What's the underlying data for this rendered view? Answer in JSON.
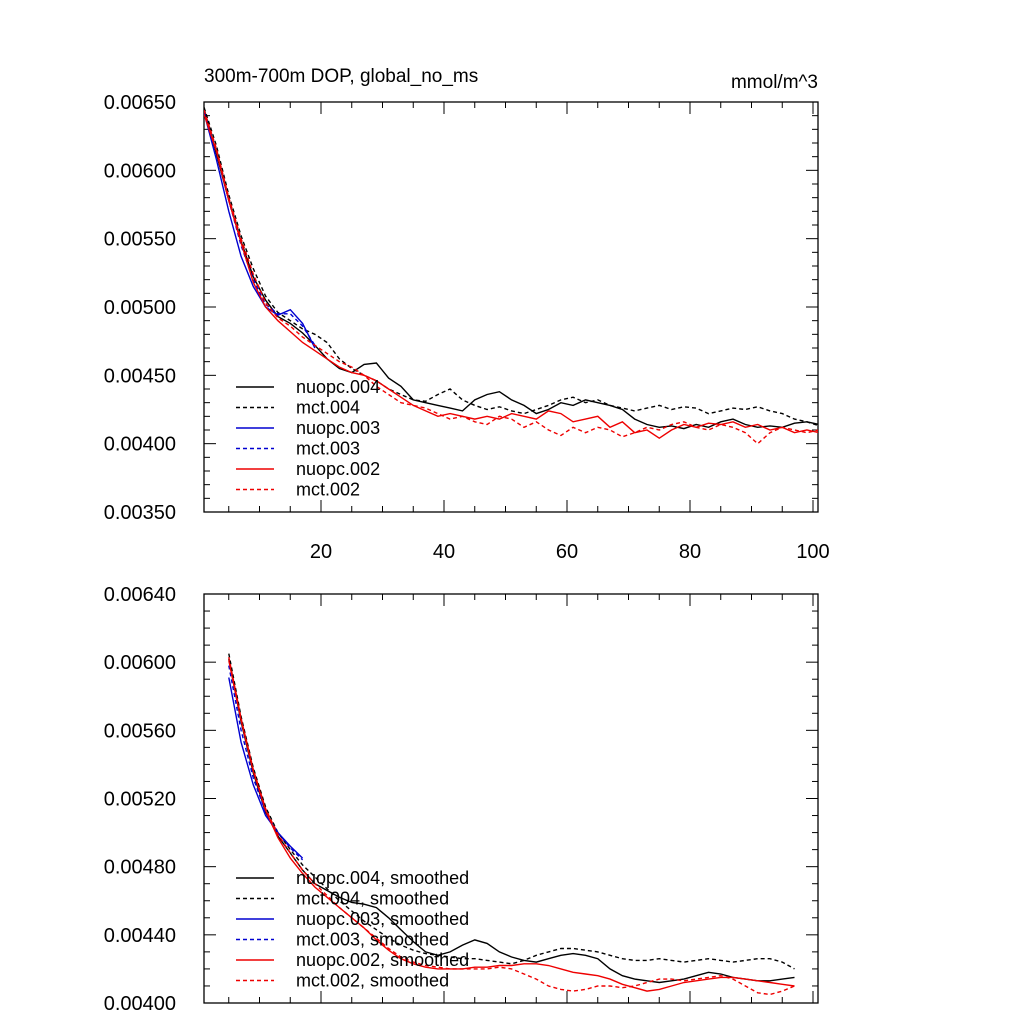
{
  "chart_data": [
    {
      "type": "line",
      "title": "300m-700m DOP, global_no_ms",
      "units": "mmol/m^3",
      "xlabel": "",
      "ylabel": "",
      "xlim": [
        1,
        101
      ],
      "ylim": [
        0.0035,
        0.0065
      ],
      "yticks": [
        "0.00350",
        "0.00400",
        "0.00450",
        "0.00500",
        "0.00550",
        "0.00600",
        "0.00650"
      ],
      "xticks": [
        "20",
        "40",
        "60",
        "80",
        "100"
      ],
      "grid": false,
      "legend_position": "bottom-left",
      "series": [
        {
          "name": "nuopc.004",
          "color": "#000000",
          "dash": "solid",
          "x": [
            1,
            3,
            5,
            7,
            9,
            11,
            13,
            15,
            17,
            19,
            21,
            23,
            25,
            27,
            29,
            31,
            33,
            35,
            37,
            39,
            41,
            43,
            45,
            47,
            49,
            51,
            53,
            55,
            57,
            59,
            61,
            63,
            65,
            67,
            69,
            71,
            73,
            75,
            77,
            79,
            81,
            83,
            85,
            87,
            89,
            91,
            93,
            95,
            97,
            99,
            101
          ],
          "y": [
            0.00645,
            0.00612,
            0.00578,
            0.00548,
            0.00522,
            0.00505,
            0.00493,
            0.00488,
            0.00481,
            0.00472,
            0.00462,
            0.00455,
            0.00452,
            0.00458,
            0.00459,
            0.00448,
            0.00442,
            0.00432,
            0.0043,
            0.00428,
            0.00426,
            0.00424,
            0.00432,
            0.00436,
            0.00438,
            0.00432,
            0.00428,
            0.00422,
            0.00425,
            0.0043,
            0.00428,
            0.00432,
            0.0043,
            0.00428,
            0.00425,
            0.00418,
            0.00414,
            0.00412,
            0.00413,
            0.00411,
            0.00414,
            0.00412,
            0.00416,
            0.00418,
            0.00414,
            0.00412,
            0.00413,
            0.00412,
            0.00415,
            0.00416,
            0.00414
          ]
        },
        {
          "name": "mct.004",
          "color": "#000000",
          "dash": "dashed",
          "x": [
            1,
            3,
            5,
            7,
            9,
            11,
            13,
            15,
            17,
            19,
            21,
            23,
            25,
            27,
            29,
            31,
            33,
            35,
            37,
            39,
            41,
            43,
            45,
            47,
            49,
            51,
            53,
            55,
            57,
            59,
            61,
            63,
            65,
            67,
            69,
            71,
            73,
            75,
            77,
            79,
            81,
            83,
            85,
            87,
            89,
            91,
            93,
            95,
            97,
            99,
            101
          ],
          "y": [
            0.00646,
            0.00618,
            0.00582,
            0.00552,
            0.00528,
            0.00508,
            0.00496,
            0.0049,
            0.00484,
            0.0048,
            0.00474,
            0.00462,
            0.00455,
            0.0045,
            0.00446,
            0.0044,
            0.00436,
            0.00432,
            0.00431,
            0.00436,
            0.0044,
            0.00432,
            0.00428,
            0.00425,
            0.00427,
            0.00424,
            0.00422,
            0.00425,
            0.00428,
            0.00432,
            0.00434,
            0.0043,
            0.00432,
            0.00428,
            0.00426,
            0.00424,
            0.00426,
            0.00428,
            0.00425,
            0.00427,
            0.00426,
            0.00422,
            0.00424,
            0.00426,
            0.00425,
            0.00427,
            0.00424,
            0.00422,
            0.00418,
            0.00416,
            0.00413
          ]
        },
        {
          "name": "nuopc.003",
          "color": "#0000d0",
          "dash": "solid",
          "x": [
            1,
            3,
            5,
            7,
            9,
            11,
            13,
            15,
            17,
            19
          ],
          "y": [
            0.00642,
            0.00608,
            0.0057,
            0.00537,
            0.00515,
            0.005,
            0.00494,
            0.00498,
            0.00488,
            0.0047
          ]
        },
        {
          "name": "mct.003",
          "color": "#0000d0",
          "dash": "dashed",
          "x": [
            1,
            3,
            5,
            7,
            9,
            11,
            13,
            15,
            17,
            19
          ],
          "y": [
            0.00643,
            0.00614,
            0.00578,
            0.00545,
            0.0052,
            0.00502,
            0.00495,
            0.00495,
            0.00486,
            0.00472
          ]
        },
        {
          "name": "nuopc.002",
          "color": "#ee0000",
          "dash": "solid",
          "x": [
            1,
            3,
            5,
            7,
            9,
            11,
            13,
            15,
            17,
            19,
            21,
            23,
            25,
            27,
            29,
            31,
            33,
            35,
            37,
            39,
            41,
            43,
            45,
            47,
            49,
            51,
            53,
            55,
            57,
            59,
            61,
            63,
            65,
            67,
            69,
            71,
            73,
            75,
            77,
            79,
            81,
            83,
            85,
            87,
            89,
            91,
            93,
            95,
            97,
            99,
            101
          ],
          "y": [
            0.00641,
            0.00614,
            0.00578,
            0.00547,
            0.00518,
            0.005,
            0.0049,
            0.00482,
            0.00474,
            0.00468,
            0.00462,
            0.00456,
            0.00452,
            0.0045,
            0.00446,
            0.0044,
            0.00434,
            0.00428,
            0.00424,
            0.0042,
            0.00422,
            0.0042,
            0.00418,
            0.0042,
            0.00418,
            0.00422,
            0.0042,
            0.00418,
            0.00424,
            0.00422,
            0.00416,
            0.00418,
            0.0042,
            0.00412,
            0.00416,
            0.00408,
            0.0041,
            0.00404,
            0.0041,
            0.00414,
            0.00412,
            0.00415,
            0.00414,
            0.00416,
            0.00412,
            0.00414,
            0.0041,
            0.00412,
            0.00408,
            0.0041,
            0.00408
          ]
        },
        {
          "name": "mct.002",
          "color": "#ee0000",
          "dash": "dashed",
          "x": [
            1,
            3,
            5,
            7,
            9,
            11,
            13,
            15,
            17,
            19,
            21,
            23,
            25,
            27,
            29,
            31,
            33,
            35,
            37,
            39,
            41,
            43,
            45,
            47,
            49,
            51,
            53,
            55,
            57,
            59,
            61,
            63,
            65,
            67,
            69,
            71,
            73,
            75,
            77,
            79,
            81,
            83,
            85,
            87,
            89,
            91,
            93,
            95,
            97,
            99,
            101
          ],
          "y": [
            0.00644,
            0.00616,
            0.0058,
            0.0055,
            0.00524,
            0.00503,
            0.00492,
            0.00486,
            0.00478,
            0.00472,
            0.00466,
            0.0046,
            0.00456,
            0.0045,
            0.00442,
            0.00436,
            0.0043,
            0.00428,
            0.00426,
            0.00422,
            0.00418,
            0.0042,
            0.00416,
            0.00414,
            0.0042,
            0.00418,
            0.00412,
            0.00416,
            0.0041,
            0.00406,
            0.00412,
            0.00408,
            0.00412,
            0.0041,
            0.00405,
            0.00408,
            0.00412,
            0.0041,
            0.00414,
            0.00416,
            0.00412,
            0.0041,
            0.00414,
            0.00412,
            0.00408,
            0.004,
            0.00408,
            0.00412,
            0.0041,
            0.00408,
            0.0041
          ]
        }
      ]
    },
    {
      "type": "line",
      "title": "",
      "xlabel": "",
      "ylabel": "",
      "xlim": [
        1,
        101
      ],
      "ylim": [
        0.004,
        0.0064
      ],
      "yticks": [
        "0.00400",
        "0.00440",
        "0.00480",
        "0.00520",
        "0.00560",
        "0.00600",
        "0.00640"
      ],
      "xticks": [],
      "grid": false,
      "legend_position": "bottom-left",
      "series": [
        {
          "name": "nuopc.004, smoothed",
          "color": "#000000",
          "dash": "solid",
          "x": [
            5,
            7,
            9,
            11,
            13,
            15,
            17,
            19,
            21,
            23,
            25,
            27,
            29,
            31,
            33,
            35,
            37,
            39,
            41,
            43,
            45,
            47,
            49,
            51,
            53,
            55,
            57,
            59,
            61,
            63,
            65,
            67,
            69,
            71,
            73,
            75,
            77,
            79,
            81,
            83,
            85,
            87,
            89,
            91,
            93,
            95,
            97
          ],
          "y": [
            0.00602,
            0.00565,
            0.00535,
            0.00512,
            0.00498,
            0.00488,
            0.00478,
            0.0047,
            0.00466,
            0.00462,
            0.00459,
            0.00458,
            0.00456,
            0.0045,
            0.00443,
            0.00436,
            0.0043,
            0.00428,
            0.0043,
            0.00434,
            0.00437,
            0.00435,
            0.0043,
            0.00427,
            0.00425,
            0.00424,
            0.00426,
            0.00428,
            0.00429,
            0.00428,
            0.00426,
            0.0042,
            0.00416,
            0.00414,
            0.00413,
            0.00412,
            0.00413,
            0.00414,
            0.00416,
            0.00418,
            0.00417,
            0.00415,
            0.00414,
            0.00413,
            0.00413,
            0.00414,
            0.00415
          ]
        },
        {
          "name": "mct.004, smoothed",
          "color": "#000000",
          "dash": "dashed",
          "x": [
            5,
            7,
            9,
            11,
            13,
            15,
            17,
            19,
            21,
            23,
            25,
            27,
            29,
            31,
            33,
            35,
            37,
            39,
            41,
            43,
            45,
            47,
            49,
            51,
            53,
            55,
            57,
            59,
            61,
            63,
            65,
            67,
            69,
            71,
            73,
            75,
            77,
            79,
            81,
            83,
            85,
            87,
            89,
            91,
            93,
            95,
            97
          ],
          "y": [
            0.00605,
            0.00568,
            0.00538,
            0.00515,
            0.005,
            0.0049,
            0.00481,
            0.00474,
            0.00467,
            0.0046,
            0.00454,
            0.00448,
            0.00443,
            0.00438,
            0.00434,
            0.00431,
            0.00429,
            0.00428,
            0.00427,
            0.00426,
            0.00426,
            0.00425,
            0.00424,
            0.00423,
            0.00425,
            0.00428,
            0.0043,
            0.00432,
            0.00432,
            0.00431,
            0.0043,
            0.00428,
            0.00426,
            0.00425,
            0.00425,
            0.00426,
            0.00425,
            0.00424,
            0.00425,
            0.00426,
            0.00425,
            0.00424,
            0.00425,
            0.00426,
            0.00426,
            0.00424,
            0.0042
          ]
        },
        {
          "name": "nuopc.003, smoothed",
          "color": "#0000d0",
          "dash": "solid",
          "x": [
            5,
            7,
            9,
            11,
            13,
            15,
            17
          ],
          "y": [
            0.00591,
            0.00553,
            0.00528,
            0.0051,
            0.005,
            0.00492,
            0.00485
          ]
        },
        {
          "name": "mct.003, smoothed",
          "color": "#0000d0",
          "dash": "dashed",
          "x": [
            5,
            7,
            9,
            11,
            13,
            15,
            17
          ],
          "y": [
            0.00598,
            0.0056,
            0.00532,
            0.00512,
            0.005,
            0.00491,
            0.00484
          ]
        },
        {
          "name": "nuopc.002, smoothed",
          "color": "#ee0000",
          "dash": "solid",
          "x": [
            5,
            7,
            9,
            11,
            13,
            15,
            17,
            19,
            21,
            23,
            25,
            27,
            29,
            31,
            33,
            35,
            37,
            39,
            41,
            43,
            45,
            47,
            49,
            51,
            53,
            55,
            57,
            59,
            61,
            63,
            65,
            67,
            69,
            71,
            73,
            75,
            77,
            79,
            81,
            83,
            85,
            87,
            89,
            91,
            93,
            95,
            97
          ],
          "y": [
            0.00601,
            0.00566,
            0.00536,
            0.00513,
            0.00497,
            0.00485,
            0.00476,
            0.00468,
            0.00462,
            0.00456,
            0.0045,
            0.00444,
            0.00437,
            0.00431,
            0.00426,
            0.00423,
            0.00421,
            0.0042,
            0.0042,
            0.0042,
            0.00421,
            0.00421,
            0.00422,
            0.00422,
            0.00423,
            0.00423,
            0.00422,
            0.0042,
            0.00418,
            0.00417,
            0.00416,
            0.00414,
            0.00411,
            0.00409,
            0.00407,
            0.00408,
            0.0041,
            0.00412,
            0.00413,
            0.00414,
            0.00415,
            0.00415,
            0.00414,
            0.00413,
            0.00412,
            0.00411,
            0.0041
          ]
        },
        {
          "name": "mct.002, smoothed",
          "color": "#ee0000",
          "dash": "dashed",
          "x": [
            5,
            7,
            9,
            11,
            13,
            15,
            17,
            19,
            21,
            23,
            25,
            27,
            29,
            31,
            33,
            35,
            37,
            39,
            41,
            43,
            45,
            47,
            49,
            51,
            53,
            55,
            57,
            59,
            61,
            63,
            65,
            67,
            69,
            71,
            73,
            75,
            77,
            79,
            81,
            83,
            85,
            87,
            89,
            91,
            93,
            95,
            97
          ],
          "y": [
            0.00603,
            0.00567,
            0.00537,
            0.00514,
            0.00499,
            0.00488,
            0.00478,
            0.0047,
            0.00463,
            0.00456,
            0.0045,
            0.00444,
            0.00438,
            0.00432,
            0.00427,
            0.00424,
            0.00422,
            0.00421,
            0.0042,
            0.0042,
            0.0042,
            0.0042,
            0.00421,
            0.0042,
            0.00417,
            0.00414,
            0.0041,
            0.00408,
            0.00407,
            0.00408,
            0.0041,
            0.0041,
            0.00409,
            0.0041,
            0.00412,
            0.00414,
            0.00414,
            0.00413,
            0.00414,
            0.00415,
            0.00416,
            0.00414,
            0.0041,
            0.00406,
            0.00405,
            0.00407,
            0.0041
          ]
        }
      ]
    }
  ]
}
